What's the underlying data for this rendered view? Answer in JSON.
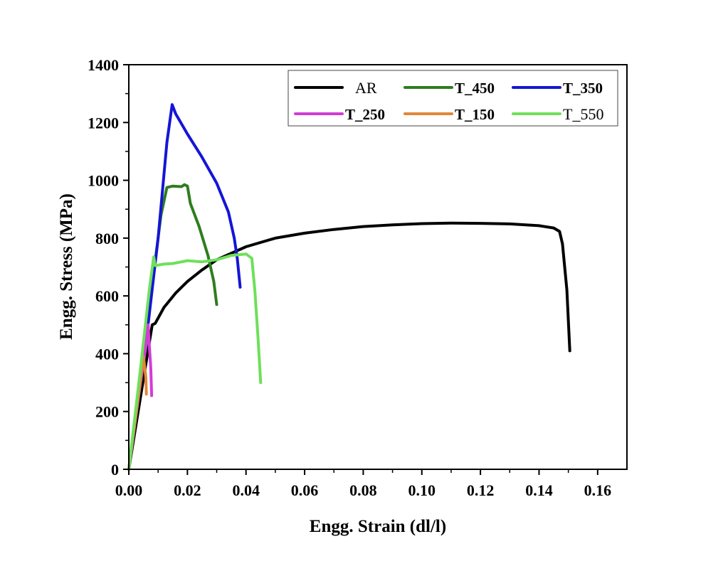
{
  "chart_data": {
    "type": "line",
    "xlabel": "Engg. Strain (dl/l)",
    "ylabel": "Engg. Stress (MPa)",
    "xlim": [
      0,
      0.17
    ],
    "ylim": [
      0,
      1400
    ],
    "x_ticks": [
      0.0,
      0.02,
      0.04,
      0.06,
      0.08,
      0.1,
      0.12,
      0.14,
      0.16
    ],
    "x_tick_labels": [
      "0.00",
      "0.02",
      "0.04",
      "0.06",
      "0.08",
      "0.10",
      "0.12",
      "0.14",
      "0.16"
    ],
    "y_ticks": [
      0,
      200,
      400,
      600,
      800,
      1000,
      1200,
      1400
    ],
    "y_tick_labels": [
      "0",
      "200",
      "400",
      "600",
      "800",
      "1000",
      "1200",
      "1400"
    ],
    "grid": false,
    "legend_position": "top-right",
    "series": [
      {
        "name": "AR",
        "color": "#000000",
        "legend_bold": false,
        "points": [
          [
            0,
            0
          ],
          [
            0.008,
            500
          ],
          [
            0.009,
            505
          ],
          [
            0.012,
            560
          ],
          [
            0.016,
            610
          ],
          [
            0.02,
            650
          ],
          [
            0.025,
            690
          ],
          [
            0.03,
            725
          ],
          [
            0.04,
            770
          ],
          [
            0.05,
            800
          ],
          [
            0.06,
            817
          ],
          [
            0.07,
            830
          ],
          [
            0.08,
            840
          ],
          [
            0.09,
            846
          ],
          [
            0.1,
            850
          ],
          [
            0.11,
            852
          ],
          [
            0.12,
            851
          ],
          [
            0.13,
            849
          ],
          [
            0.14,
            843
          ],
          [
            0.145,
            835
          ],
          [
            0.147,
            823
          ],
          [
            0.148,
            780
          ],
          [
            0.1495,
            620
          ],
          [
            0.1505,
            410
          ]
        ]
      },
      {
        "name": "T_450",
        "color": "#2e7d1f",
        "legend_bold": true,
        "points": [
          [
            0,
            0
          ],
          [
            0.004,
            340
          ],
          [
            0.008,
            640
          ],
          [
            0.011,
            880
          ],
          [
            0.013,
            975
          ],
          [
            0.015,
            980
          ],
          [
            0.018,
            978
          ],
          [
            0.019,
            985
          ],
          [
            0.02,
            980
          ],
          [
            0.021,
            920
          ],
          [
            0.024,
            840
          ],
          [
            0.027,
            740
          ],
          [
            0.029,
            650
          ],
          [
            0.03,
            570
          ]
        ]
      },
      {
        "name": "T_350",
        "color": "#1515d6",
        "legend_bold": true,
        "points": [
          [
            0,
            0
          ],
          [
            0.006,
            450
          ],
          [
            0.01,
            800
          ],
          [
            0.013,
            1130
          ],
          [
            0.0148,
            1262
          ],
          [
            0.016,
            1230
          ],
          [
            0.02,
            1160
          ],
          [
            0.025,
            1080
          ],
          [
            0.03,
            990
          ],
          [
            0.034,
            890
          ],
          [
            0.036,
            800
          ],
          [
            0.037,
            730
          ],
          [
            0.038,
            630
          ]
        ]
      },
      {
        "name": "T_250",
        "color": "#d23cd6",
        "legend_bold": true,
        "points": [
          [
            0,
            0
          ],
          [
            0.003,
            230
          ],
          [
            0.006,
            440
          ],
          [
            0.0066,
            500
          ],
          [
            0.007,
            430
          ],
          [
            0.0075,
            350
          ],
          [
            0.0078,
            255
          ]
        ]
      },
      {
        "name": "T_150",
        "color": "#e0873a",
        "legend_bold": true,
        "points": [
          [
            0,
            0
          ],
          [
            0.003,
            230
          ],
          [
            0.005,
            390
          ],
          [
            0.0058,
            320
          ],
          [
            0.006,
            260
          ]
        ]
      },
      {
        "name": "T_550",
        "color": "#6ee05a",
        "legend_bold": false,
        "points": [
          [
            0,
            0
          ],
          [
            0.004,
            350
          ],
          [
            0.007,
            620
          ],
          [
            0.0085,
            735
          ],
          [
            0.009,
            705
          ],
          [
            0.012,
            710
          ],
          [
            0.015,
            712
          ],
          [
            0.02,
            722
          ],
          [
            0.025,
            718
          ],
          [
            0.03,
            725
          ],
          [
            0.035,
            740
          ],
          [
            0.04,
            745
          ],
          [
            0.042,
            730
          ],
          [
            0.043,
            620
          ],
          [
            0.044,
            470
          ],
          [
            0.045,
            300
          ]
        ]
      }
    ]
  }
}
